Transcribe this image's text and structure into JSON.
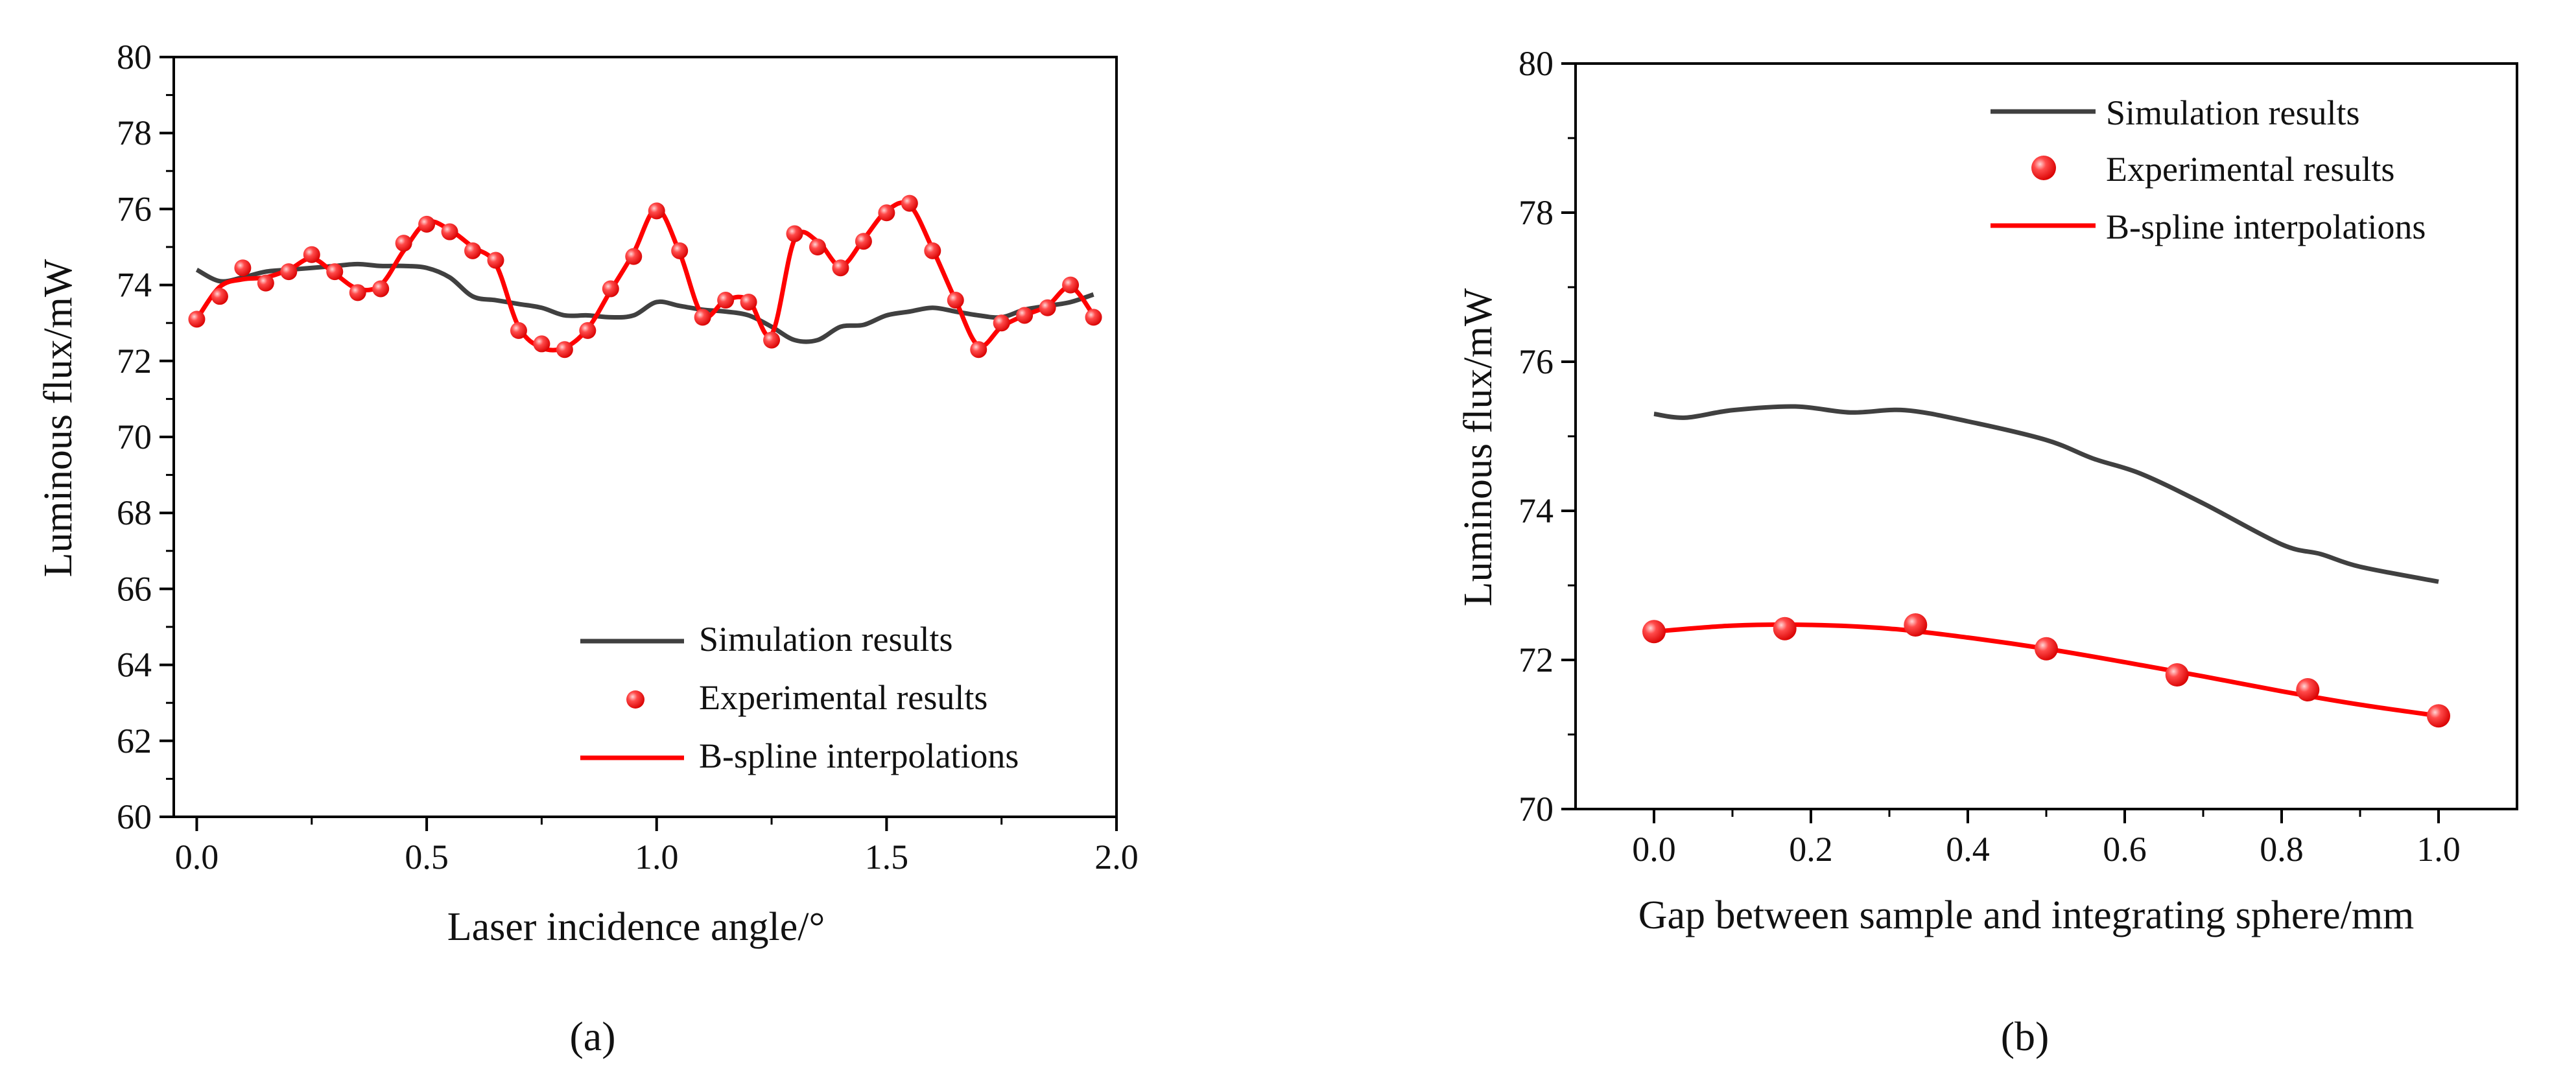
{
  "colors": {
    "simulation": "#404040",
    "experimental": "#ff2020",
    "spline": "#ff0000",
    "axis": "#000000"
  },
  "chart_data": [
    {
      "type": "line",
      "panel": "a",
      "caption": "(a)",
      "xlabel": "Laser incidence angle/°",
      "ylabel": "Luminous flux/mW",
      "xlim": [
        -0.05,
        2.0
      ],
      "ylim": [
        60,
        80
      ],
      "xticks": [
        "0.0",
        "0.5",
        "1.0",
        "1.5",
        "2.0"
      ],
      "xtick_values": [
        0,
        0.5,
        1.0,
        1.5,
        2.0
      ],
      "yticks": [
        "60",
        "62",
        "64",
        "66",
        "68",
        "70",
        "72",
        "74",
        "76",
        "78",
        "80"
      ],
      "ytick_values": [
        60,
        62,
        64,
        66,
        68,
        70,
        72,
        74,
        76,
        78,
        80
      ],
      "legend_position": "bottom-right",
      "legend": [
        "Simulation results",
        "Experimental results",
        "B-spline interpolations"
      ],
      "series": [
        {
          "name": "Simulation results",
          "style": "line",
          "x": [
            0,
            0.05,
            0.1,
            0.15,
            0.2,
            0.25,
            0.3,
            0.35,
            0.4,
            0.45,
            0.5,
            0.55,
            0.6,
            0.65,
            0.7,
            0.75,
            0.8,
            0.85,
            0.9,
            0.95,
            1.0,
            1.05,
            1.1,
            1.15,
            1.2,
            1.25,
            1.3,
            1.35,
            1.4,
            1.45,
            1.5,
            1.55,
            1.6,
            1.65,
            1.7,
            1.75,
            1.8,
            1.85,
            1.9,
            1.95
          ],
          "y": [
            74.4,
            74.1,
            74.2,
            74.35,
            74.4,
            74.45,
            74.5,
            74.55,
            74.5,
            74.5,
            74.45,
            74.2,
            73.7,
            73.6,
            73.5,
            73.4,
            73.2,
            73.2,
            73.15,
            73.2,
            73.55,
            73.45,
            73.35,
            73.3,
            73.2,
            72.9,
            72.55,
            72.55,
            72.9,
            72.95,
            73.2,
            73.3,
            73.4,
            73.3,
            73.2,
            73.15,
            73.35,
            73.45,
            73.55,
            73.75
          ]
        },
        {
          "name": "Experimental results",
          "style": "markers",
          "x": [
            0,
            0.05,
            0.1,
            0.15,
            0.2,
            0.25,
            0.3,
            0.35,
            0.4,
            0.45,
            0.5,
            0.55,
            0.6,
            0.65,
            0.7,
            0.75,
            0.8,
            0.85,
            0.9,
            0.95,
            1.0,
            1.05,
            1.1,
            1.15,
            1.2,
            1.25,
            1.3,
            1.35,
            1.4,
            1.45,
            1.5,
            1.55,
            1.6,
            1.65,
            1.7,
            1.75,
            1.8,
            1.85,
            1.9,
            1.95
          ],
          "y": [
            73.1,
            73.7,
            74.45,
            74.05,
            74.35,
            74.8,
            74.35,
            73.8,
            73.9,
            75.1,
            75.6,
            75.4,
            74.9,
            74.65,
            72.8,
            72.45,
            72.3,
            72.8,
            73.9,
            74.75,
            75.95,
            74.9,
            73.15,
            73.6,
            73.55,
            72.55,
            75.35,
            75.0,
            74.45,
            75.15,
            75.9,
            76.15,
            74.9,
            73.6,
            72.3,
            73.0,
            73.2,
            73.4,
            74.0,
            73.15
          ]
        },
        {
          "name": "B-spline interpolations",
          "style": "spline",
          "x": [
            0,
            0.05,
            0.1,
            0.15,
            0.2,
            0.25,
            0.3,
            0.35,
            0.4,
            0.45,
            0.5,
            0.55,
            0.6,
            0.65,
            0.7,
            0.75,
            0.8,
            0.85,
            0.9,
            0.95,
            1.0,
            1.05,
            1.1,
            1.15,
            1.2,
            1.25,
            1.3,
            1.35,
            1.4,
            1.45,
            1.5,
            1.55,
            1.6,
            1.65,
            1.7,
            1.75,
            1.8,
            1.85,
            1.9,
            1.95
          ],
          "y": [
            73.1,
            73.95,
            74.15,
            74.2,
            74.4,
            74.7,
            74.3,
            73.9,
            74.0,
            74.9,
            75.65,
            75.45,
            75.0,
            74.55,
            72.9,
            72.35,
            72.35,
            72.85,
            73.85,
            74.85,
            76.0,
            74.85,
            73.2,
            73.6,
            73.6,
            72.7,
            75.2,
            75.15,
            74.5,
            75.2,
            75.95,
            76.1,
            74.95,
            73.6,
            72.4,
            72.9,
            73.2,
            73.45,
            73.95,
            73.2
          ]
        }
      ]
    },
    {
      "type": "line",
      "panel": "b",
      "caption": "(b)",
      "xlabel": "Gap between sample and integrating sphere/mm",
      "ylabel": "Luminous flux/mW",
      "xlim": [
        -0.1,
        1.1
      ],
      "ylim": [
        70,
        80
      ],
      "xticks": [
        "0.0",
        "0.2",
        "0.4",
        "0.6",
        "0.8",
        "1.0"
      ],
      "xtick_values": [
        0,
        0.2,
        0.4,
        0.6,
        0.8,
        1.0
      ],
      "yticks": [
        "70",
        "72",
        "74",
        "76",
        "78",
        "80"
      ],
      "ytick_values": [
        70,
        72,
        74,
        76,
        78,
        80
      ],
      "legend_position": "top-right",
      "legend": [
        "Simulation results",
        "Experimental results",
        "B-spline interpolations"
      ],
      "series": [
        {
          "name": "Simulation results",
          "style": "line",
          "x": [
            0,
            0.04,
            0.1,
            0.18,
            0.25,
            0.32,
            0.4,
            0.5,
            0.56,
            0.62,
            0.7,
            0.8,
            0.85,
            0.9,
            1.0
          ],
          "y": [
            75.3,
            75.25,
            75.35,
            75.4,
            75.32,
            75.35,
            75.2,
            74.95,
            74.7,
            74.5,
            74.1,
            73.55,
            73.42,
            73.25,
            73.05
          ]
        },
        {
          "name": "Experimental results",
          "style": "markers",
          "x": [
            0,
            0.1667,
            0.3333,
            0.5,
            0.6667,
            0.8333,
            1.0
          ],
          "y": [
            72.38,
            72.42,
            72.47,
            72.15,
            71.8,
            71.6,
            71.25
          ]
        },
        {
          "name": "B-spline interpolations",
          "style": "spline",
          "x": [
            0,
            0.1,
            0.2,
            0.3,
            0.4,
            0.5,
            0.6,
            0.7,
            0.8,
            0.9,
            1.0
          ],
          "y": [
            72.38,
            72.46,
            72.47,
            72.42,
            72.3,
            72.15,
            71.97,
            71.78,
            71.58,
            71.4,
            71.25
          ]
        }
      ]
    }
  ]
}
